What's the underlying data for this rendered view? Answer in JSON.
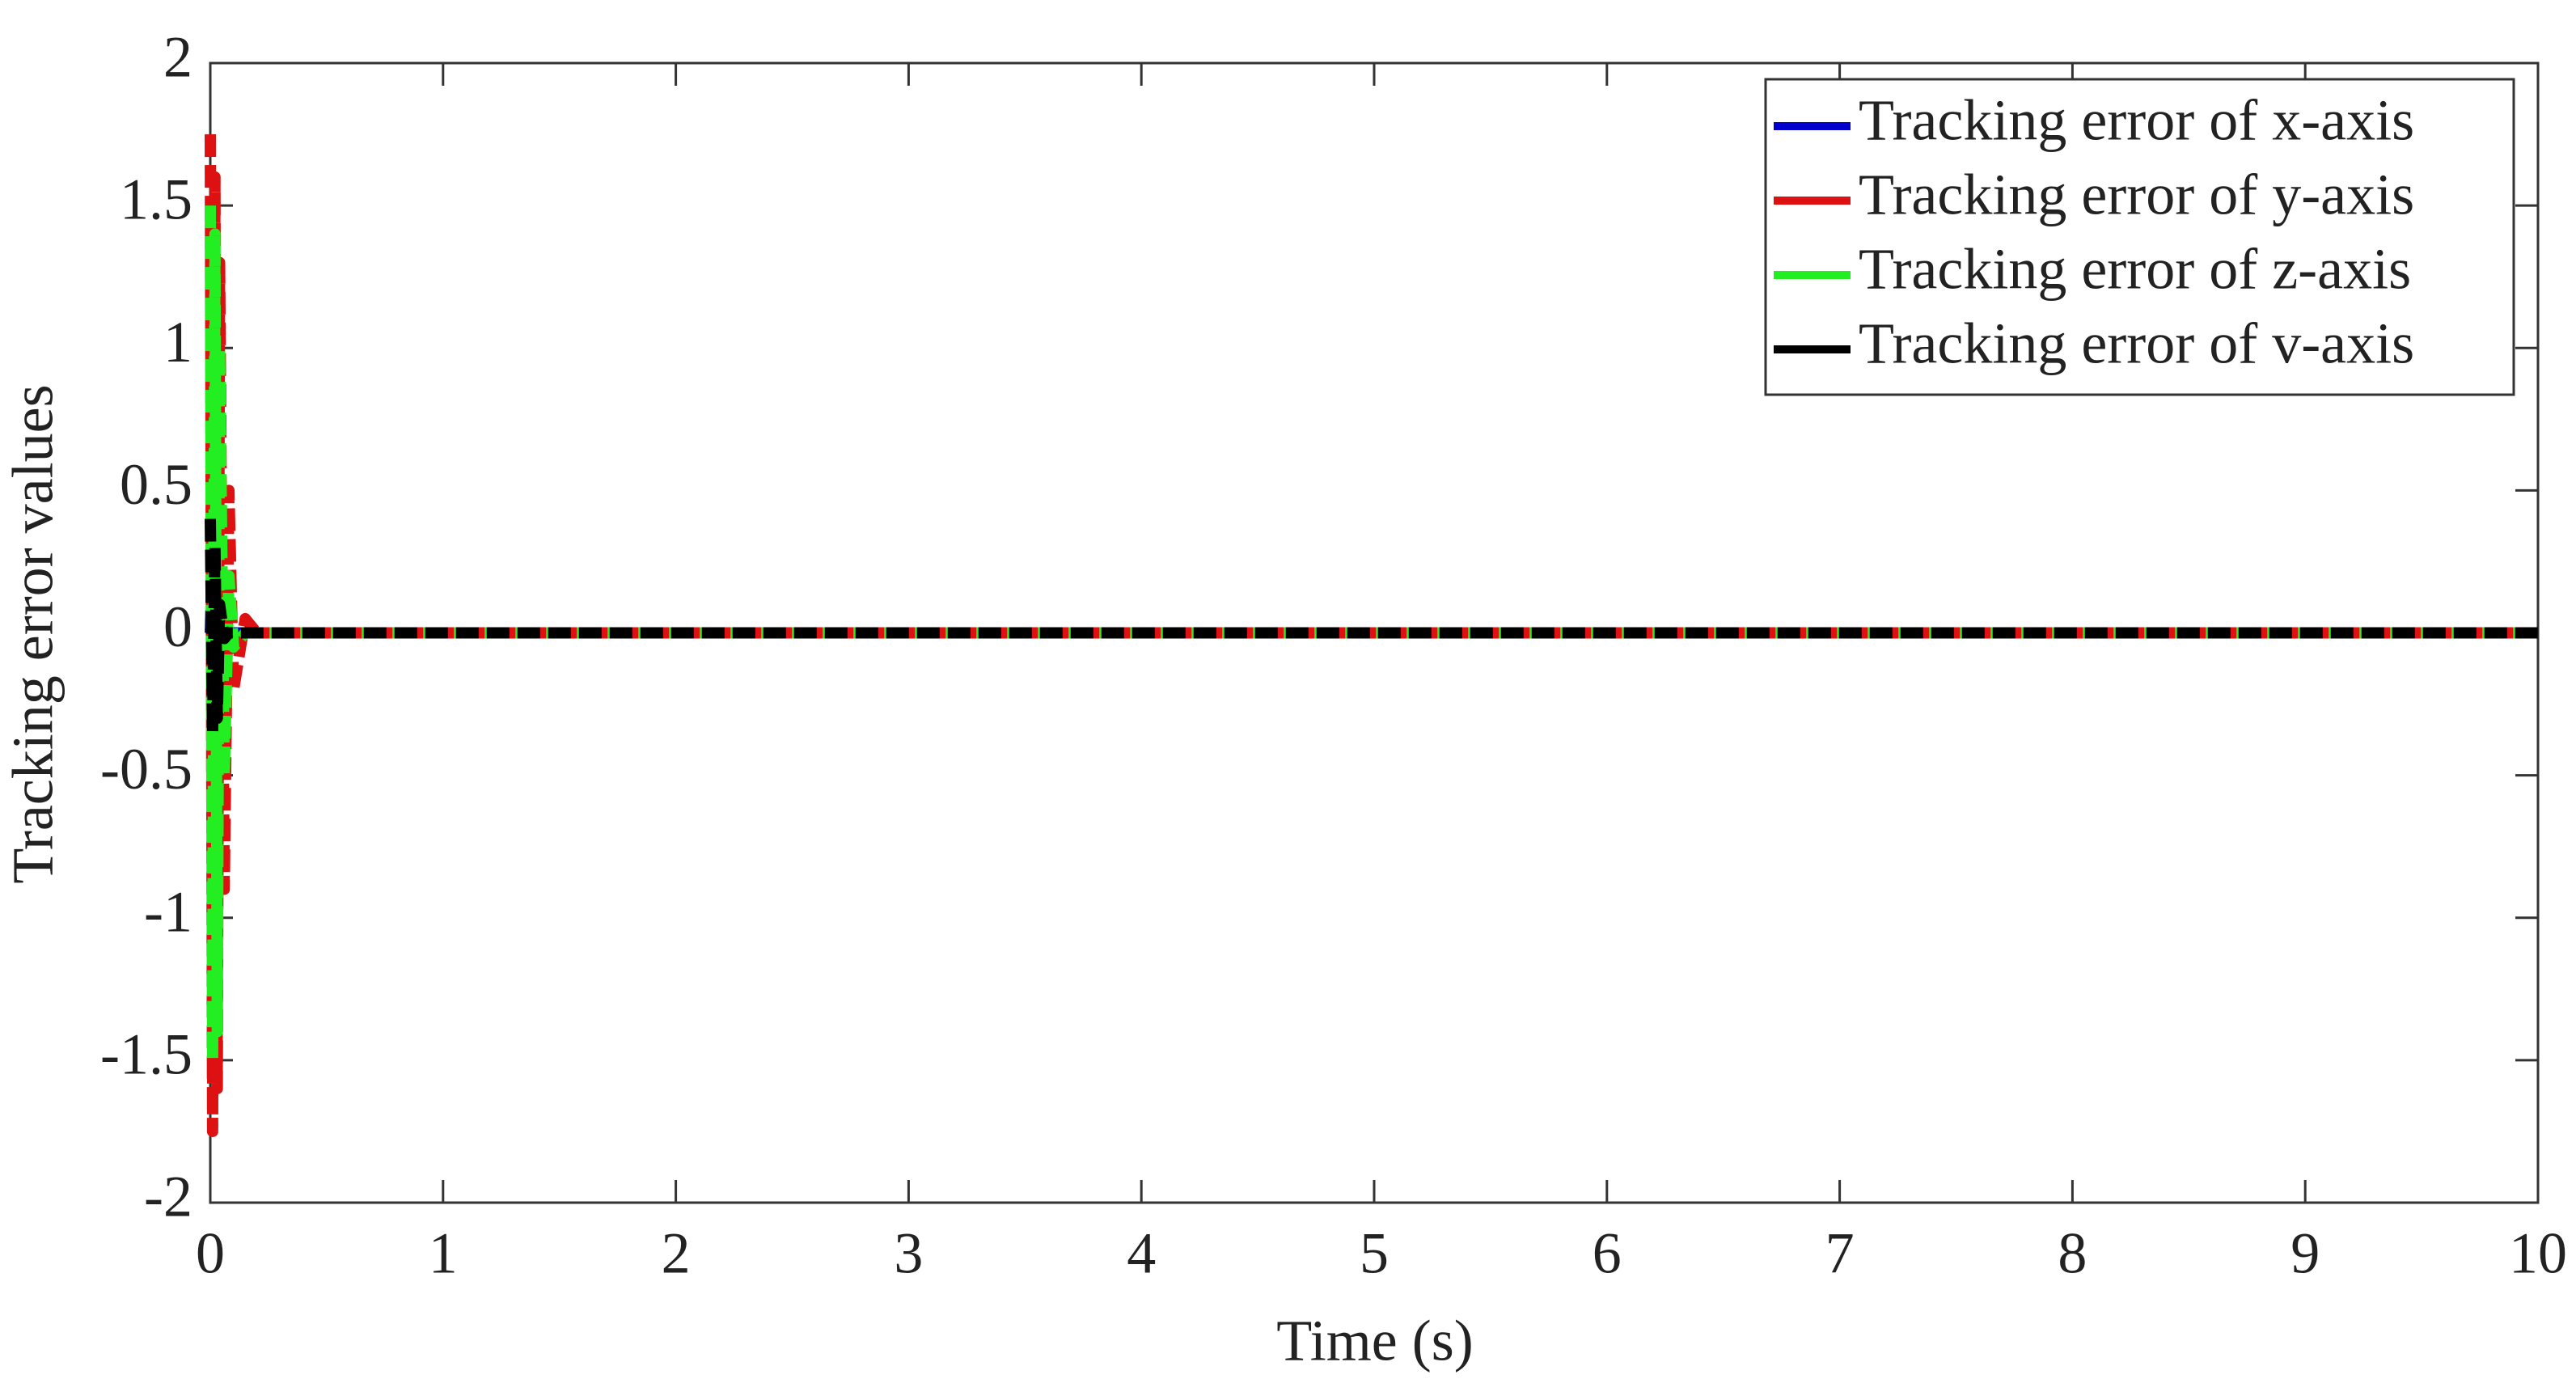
{
  "chart_data": {
    "type": "line",
    "xlabel": "Time (s)",
    "ylabel": "Tracking error values",
    "x": [
      0,
      0.01,
      0.02,
      0.03,
      0.04,
      0.06,
      0.08,
      0.1,
      0.15,
      0.2,
      1,
      2,
      3,
      4,
      5,
      6,
      7,
      8,
      9,
      10
    ],
    "series": [
      {
        "name": "Tracking error of x-axis",
        "color": "#0000cc",
        "values": [
          0,
          0.3,
          -0.3,
          0.2,
          -0.2,
          0.1,
          -0.05,
          0,
          0,
          0,
          0,
          0,
          0,
          0,
          0,
          0,
          0,
          0,
          0,
          0
        ]
      },
      {
        "name": "Tracking error of y-axis",
        "color": "#dd1111",
        "values": [
          1.75,
          -1.75,
          1.6,
          -1.6,
          1.3,
          -0.9,
          0.5,
          -0.2,
          0.05,
          0,
          0,
          0,
          0,
          0,
          0,
          0,
          0,
          0,
          0,
          0
        ]
      },
      {
        "name": "Tracking error of z-axis",
        "color": "#22ee22",
        "values": [
          1.5,
          -1.5,
          1.4,
          -1.4,
          1.0,
          -0.5,
          0.2,
          -0.05,
          0,
          0,
          0,
          0,
          0,
          0,
          0,
          0,
          0,
          0,
          0,
          0
        ]
      },
      {
        "name": "Tracking error of v-axis",
        "color": "#000000",
        "values": [
          0.4,
          -0.35,
          0.3,
          -0.3,
          0.1,
          -0.02,
          0,
          0,
          0,
          0,
          0,
          0,
          0,
          0,
          0,
          0,
          0,
          0,
          0,
          0
        ]
      }
    ],
    "xlim": [
      0,
      10
    ],
    "xticks": [
      0,
      1,
      2,
      3,
      4,
      5,
      6,
      7,
      8,
      9,
      10
    ],
    "ylim": [
      -2,
      2
    ],
    "yticks": [
      -2,
      -1.5,
      -1,
      -0.5,
      0,
      0.5,
      1,
      1.5,
      2
    ],
    "grid": false,
    "legend": "upper-right"
  }
}
